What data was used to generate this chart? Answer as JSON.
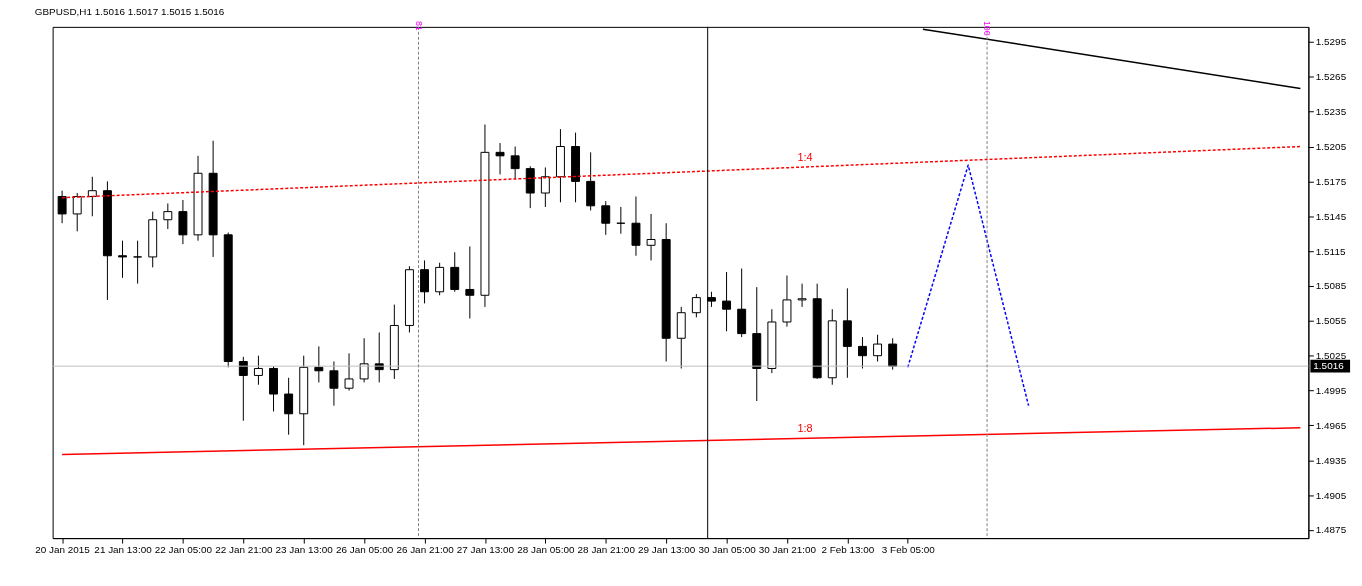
{
  "chart_data": {
    "type": "candlestick",
    "title": "GBPUSD,H1  1.5016 1.5017 1.5015 1.5016",
    "categories": [
      "20 Jan 2015",
      null,
      null,
      null,
      "21 Jan 13:00",
      null,
      null,
      null,
      "22 Jan 05:00",
      null,
      null,
      null,
      "22 Jan 21:00",
      null,
      null,
      null,
      "23 Jan 13:00",
      null,
      null,
      null,
      "26 Jan 05:00",
      null,
      null,
      null,
      "26 Jan 21:00",
      null,
      null,
      null,
      "27 Jan 13:00",
      null,
      null,
      null,
      "28 Jan 05:00",
      null,
      null,
      null,
      "28 Jan 21:00",
      null,
      null,
      null,
      "29 Jan 13:00",
      null,
      null,
      null,
      "30 Jan 05:00",
      null,
      null,
      null,
      "30 Jan 21:00",
      null,
      null,
      null,
      "2 Feb 13:00",
      null,
      null,
      null,
      "3 Feb 05:00",
      null,
      null,
      null,
      null,
      null,
      null,
      null,
      null,
      null,
      null,
      null,
      null,
      null,
      null,
      null,
      null,
      null,
      null,
      null,
      null,
      null,
      null,
      null,
      null,
      null,
      null
    ],
    "ohlc": [
      [
        1.5162,
        1.5167,
        1.5139,
        1.5147
      ],
      [
        1.5147,
        1.5165,
        1.5132,
        1.5162
      ],
      [
        1.5162,
        1.5179,
        1.5145,
        1.5167
      ],
      [
        1.5167,
        1.5175,
        1.5073,
        1.5111
      ],
      [
        1.5111,
        1.5124,
        1.5092,
        1.511
      ],
      [
        1.511,
        1.5124,
        1.5087,
        1.511
      ],
      [
        1.511,
        1.5149,
        1.5101,
        1.5142
      ],
      [
        1.5142,
        1.5156,
        1.5134,
        1.5149
      ],
      [
        1.5149,
        1.5159,
        1.5121,
        1.5129
      ],
      [
        1.5129,
        1.5197,
        1.5124,
        1.5182
      ],
      [
        1.5182,
        1.521,
        1.511,
        1.5129
      ],
      [
        1.5129,
        1.5131,
        1.5015,
        1.502
      ],
      [
        1.502,
        1.5024,
        1.4969,
        1.5008
      ],
      [
        1.5008,
        1.5025,
        1.5,
        1.5014
      ],
      [
        1.5014,
        1.5016,
        1.4977,
        1.4992
      ],
      [
        1.4992,
        1.5006,
        1.4957,
        1.4975
      ],
      [
        1.4975,
        1.5025,
        1.4948,
        1.5015
      ],
      [
        1.5015,
        1.5033,
        1.5002,
        1.5012
      ],
      [
        1.5012,
        1.502,
        1.4982,
        1.4997
      ],
      [
        1.4997,
        1.5027,
        1.4995,
        1.5005
      ],
      [
        1.5005,
        1.504,
        1.5002,
        1.5018
      ],
      [
        1.5018,
        1.5045,
        1.5002,
        1.5013
      ],
      [
        1.5013,
        1.5069,
        1.5005,
        1.5051
      ],
      [
        1.5051,
        1.5102,
        1.5045,
        1.5099
      ],
      [
        1.5099,
        1.5107,
        1.507,
        1.508
      ],
      [
        1.508,
        1.5105,
        1.5077,
        1.5101
      ],
      [
        1.5101,
        1.5114,
        1.508,
        1.5082
      ],
      [
        1.5082,
        1.5119,
        1.5057,
        1.5077
      ],
      [
        1.5077,
        1.5224,
        1.5067,
        1.52
      ],
      [
        1.52,
        1.5208,
        1.5181,
        1.5197
      ],
      [
        1.5197,
        1.5205,
        1.5177,
        1.5186
      ],
      [
        1.5186,
        1.5188,
        1.5152,
        1.5165
      ],
      [
        1.5165,
        1.5187,
        1.5153,
        1.5179
      ],
      [
        1.5179,
        1.522,
        1.5157,
        1.5205
      ],
      [
        1.5205,
        1.5217,
        1.5157,
        1.5175
      ],
      [
        1.5175,
        1.52,
        1.515,
        1.5154
      ],
      [
        1.5154,
        1.5158,
        1.5129,
        1.5139
      ],
      [
        1.5139,
        1.5153,
        1.513,
        1.5139
      ],
      [
        1.5139,
        1.5162,
        1.5111,
        1.512
      ],
      [
        1.512,
        1.5147,
        1.5107,
        1.5125
      ],
      [
        1.5125,
        1.5139,
        1.502,
        1.504
      ],
      [
        1.504,
        1.5067,
        1.5014,
        1.5062
      ],
      [
        1.5062,
        1.5078,
        1.5058,
        1.5075
      ],
      [
        1.5075,
        1.508,
        1.5067,
        1.5072
      ],
      [
        1.5072,
        1.5097,
        1.5046,
        1.5065
      ],
      [
        1.5065,
        1.51,
        1.5041,
        1.5044
      ],
      [
        1.5044,
        1.5084,
        1.4986,
        1.5014
      ],
      [
        1.5014,
        1.5065,
        1.501,
        1.5054
      ],
      [
        1.5054,
        1.5094,
        1.505,
        1.5073
      ],
      [
        1.5073,
        1.5087,
        1.5067,
        1.5074
      ],
      [
        1.5074,
        1.5087,
        1.5005,
        1.5006
      ],
      [
        1.5006,
        1.5065,
        1.5,
        1.5055
      ],
      [
        1.5055,
        1.5083,
        1.5006,
        1.5033
      ],
      [
        1.5033,
        1.5041,
        1.5014,
        1.5025
      ],
      [
        1.5025,
        1.5043,
        1.502,
        1.5035
      ],
      [
        1.5035,
        1.504,
        1.5013,
        1.5016
      ],
      null,
      null,
      null,
      null,
      null,
      null,
      null,
      null,
      null,
      null,
      null,
      null,
      null,
      null,
      null,
      null,
      null,
      null,
      null,
      null,
      null,
      null,
      null,
      null,
      null,
      null,
      null
    ],
    "series": [
      {
        "type": "line",
        "name": "1:4",
        "color": "#ff0000",
        "line_style": "dashed",
        "values": [
          1.5161,
          null,
          null,
          null,
          null,
          null,
          null,
          null,
          null,
          null,
          null,
          null,
          null,
          null,
          null,
          null,
          null,
          null,
          null,
          null,
          null,
          null,
          null,
          null,
          null,
          null,
          null,
          null,
          null,
          null,
          null,
          null,
          null,
          null,
          null,
          null,
          null,
          null,
          null,
          null,
          null,
          null,
          null,
          null,
          null,
          null,
          null,
          null,
          null,
          null,
          null,
          null,
          null,
          null,
          null,
          null,
          null,
          null,
          null,
          null,
          null,
          null,
          null,
          null,
          null,
          null,
          null,
          null,
          null,
          null,
          null,
          null,
          null,
          null,
          null,
          null,
          null,
          null,
          null,
          null,
          null,
          null,
          1.5205
        ]
      },
      {
        "type": "line",
        "name": "1:8",
        "color": "#ff0000",
        "line_style": "solid",
        "values": [
          1.494,
          null,
          null,
          null,
          null,
          null,
          null,
          null,
          null,
          null,
          null,
          null,
          null,
          null,
          null,
          null,
          null,
          null,
          null,
          null,
          null,
          null,
          null,
          null,
          null,
          null,
          null,
          null,
          null,
          null,
          null,
          null,
          null,
          null,
          null,
          null,
          null,
          null,
          null,
          null,
          null,
          null,
          null,
          null,
          null,
          null,
          null,
          null,
          null,
          null,
          null,
          null,
          null,
          null,
          null,
          null,
          null,
          null,
          null,
          null,
          null,
          null,
          null,
          null,
          null,
          null,
          null,
          null,
          null,
          null,
          null,
          null,
          null,
          null,
          null,
          null,
          null,
          null,
          null,
          null,
          null,
          null,
          1.4963
        ]
      },
      {
        "type": "line",
        "color": "#000000",
        "line_style": "solid",
        "values": [
          null,
          null,
          null,
          null,
          null,
          null,
          null,
          null,
          null,
          null,
          null,
          null,
          null,
          null,
          null,
          null,
          null,
          null,
          null,
          null,
          null,
          null,
          null,
          null,
          null,
          null,
          null,
          null,
          null,
          null,
          null,
          null,
          null,
          null,
          null,
          null,
          null,
          null,
          null,
          null,
          null,
          null,
          null,
          null,
          null,
          null,
          null,
          null,
          null,
          null,
          null,
          null,
          null,
          null,
          null,
          null,
          null,
          1.5306,
          null,
          null,
          null,
          null,
          null,
          null,
          null,
          null,
          null,
          null,
          null,
          null,
          null,
          null,
          null,
          null,
          null,
          null,
          null,
          null,
          null,
          null,
          null,
          null,
          1.5255
        ]
      },
      {
        "type": "line",
        "color": "#0000ff",
        "line_style": "dashed",
        "values": [
          null,
          null,
          null,
          null,
          null,
          null,
          null,
          null,
          null,
          null,
          null,
          null,
          null,
          null,
          null,
          null,
          null,
          null,
          null,
          null,
          null,
          null,
          null,
          null,
          null,
          null,
          null,
          null,
          null,
          null,
          null,
          null,
          null,
          null,
          null,
          null,
          null,
          null,
          null,
          null,
          null,
          null,
          null,
          null,
          null,
          null,
          null,
          null,
          null,
          null,
          null,
          null,
          null,
          null,
          null,
          null,
          1.5015,
          null,
          null,
          null,
          1.5189,
          null,
          null,
          null,
          1.4982,
          null,
          null,
          null,
          null,
          null,
          null,
          null,
          null,
          null,
          null,
          null,
          null,
          null,
          null,
          null,
          null,
          null,
          null
        ]
      }
    ],
    "ref_lines": [
      {
        "axis": "y",
        "value": 1.5016,
        "label": "1.5016",
        "color": "#c0c0c0",
        "line_style": "solid"
      }
    ],
    "annotations": [
      "81",
      "100"
    ],
    "ylim": [
      1.4868,
      1.5308
    ],
    "yticks": [
      1.4875,
      1.4905,
      1.4935,
      1.4965,
      1.4995,
      1.5025,
      1.5055,
      1.5085,
      1.5115,
      1.5145,
      1.5175,
      1.5205,
      1.5235,
      1.5265,
      1.5295
    ],
    "grid": false
  }
}
